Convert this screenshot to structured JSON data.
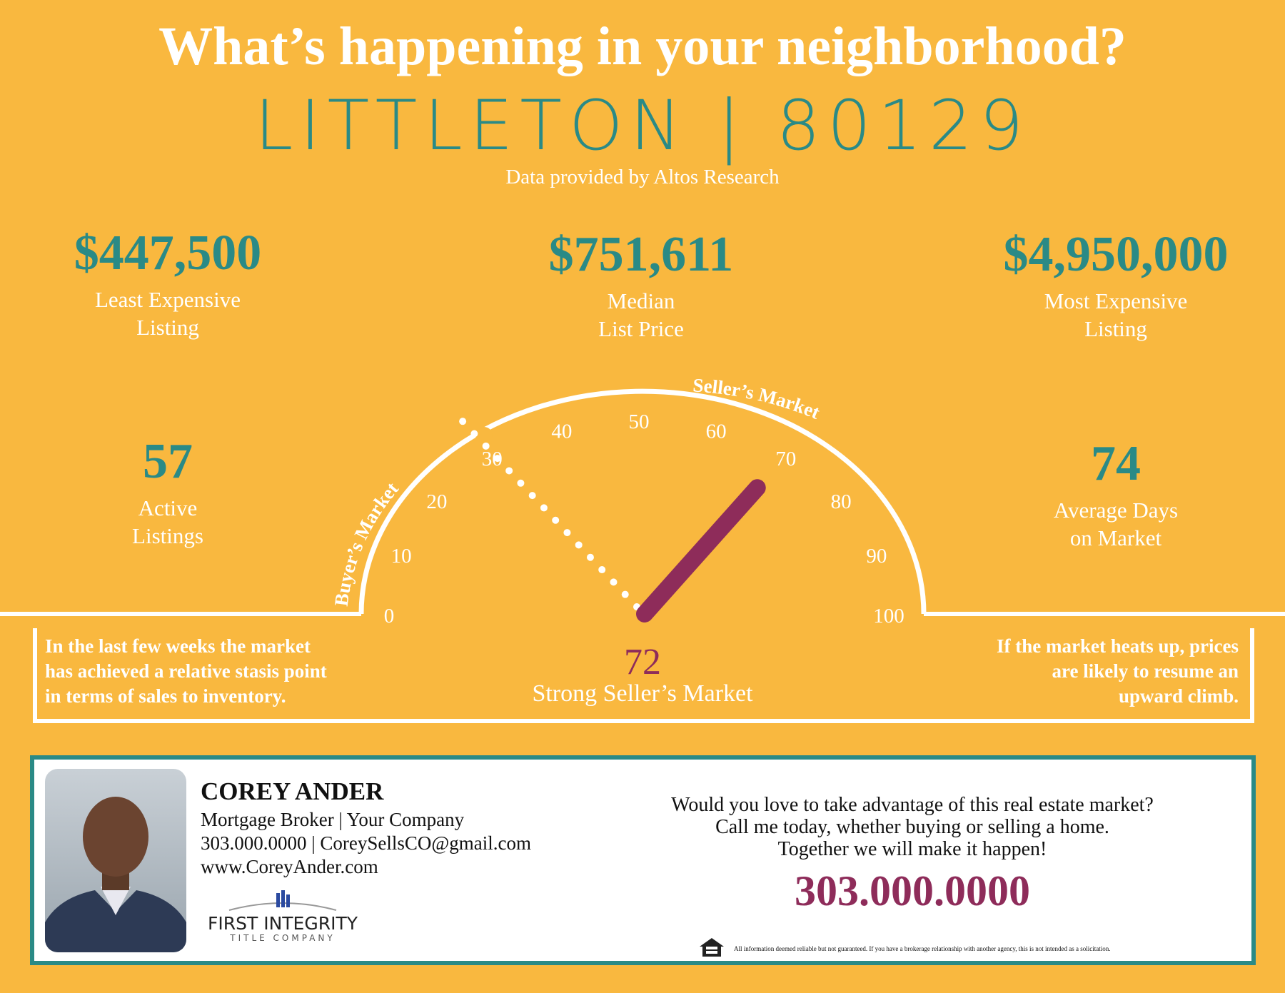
{
  "header": {
    "title": "What’s happening in your neighborhood?",
    "city": "LITTLETON | 80129",
    "source": "Data provided by Altos Research"
  },
  "stats": {
    "least": {
      "value": "$447,500",
      "label1": "Least Expensive",
      "label2": "Listing"
    },
    "median": {
      "value": "$751,611",
      "label1": "Median",
      "label2": "List Price"
    },
    "most": {
      "value": "$4,950,000",
      "label1": "Most Expensive",
      "label2": "Listing"
    },
    "active": {
      "value": "57",
      "label1": "Active",
      "label2": "Listings"
    },
    "days": {
      "value": "74",
      "label1": "Average Days",
      "label2": "on Market"
    }
  },
  "gauge": {
    "value": 72,
    "threshold": 30,
    "min": 0,
    "max": 100,
    "ticks": [
      "0",
      "10",
      "20",
      "30",
      "40",
      "50",
      "60",
      "70",
      "80",
      "90",
      "100"
    ],
    "buyer_label": "Buyer’s Market",
    "seller_label": "Seller’s Market",
    "score": "72",
    "score_label": "Strong Seller’s Market",
    "needle_color": "#8e2c5a"
  },
  "notes": {
    "left": [
      "In the last few weeks the market",
      "has achieved a relative stasis point",
      "in terms of sales to inventory."
    ],
    "right": [
      "If the market heats up, prices",
      "are likely to resume an",
      "upward climb."
    ]
  },
  "agent": {
    "name": "COREY ANDER",
    "title": "Mortgage Broker | Your Company",
    "contact": "303.000.0000 | CoreySellsCO@gmail.com",
    "website": "www.CoreyAnder.com",
    "logo_main": "FIRST INTEGRITY",
    "logo_sub": "TITLE COMPANY"
  },
  "pitch": {
    "lines": [
      "Would you love to take advantage of this real estate market?",
      "Call me today, whether buying or selling a home.",
      "Together we will make it happen!"
    ],
    "phone": "303.000.0000"
  },
  "disclaimer": "All information deemed reliable but not guaranteed. If you have a brokerage relationship with another agency, this is not intended as a solicitation.",
  "colors": {
    "background": "#f9b83f",
    "teal": "#2a8a86",
    "maroon": "#8e2c5a"
  }
}
